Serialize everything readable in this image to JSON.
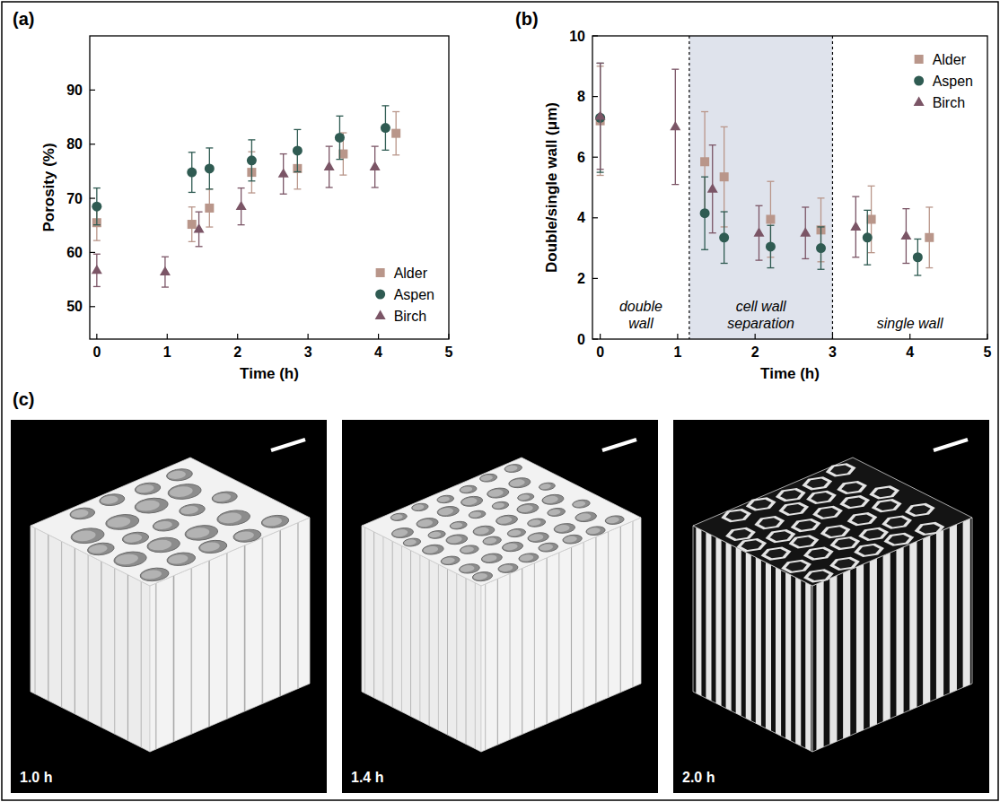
{
  "chart_data": [
    {
      "type": "scatter",
      "title": "(a)",
      "x_label": "Time (h)",
      "y_label": "Porosity (%)",
      "xlim": [
        -0.1,
        5
      ],
      "xticks": [
        0,
        1,
        2,
        3,
        4,
        5
      ],
      "ylim": [
        44,
        100
      ],
      "yticks": [
        50,
        60,
        70,
        80,
        90
      ],
      "legend": "lower right",
      "series": [
        {
          "name": "Alder",
          "color": "#b9968a",
          "marker": "square",
          "x": [
            0,
            1.35,
            1.6,
            2.2,
            2.85,
            3.5,
            4.25
          ],
          "values": [
            65.5,
            65.2,
            68.2,
            74.8,
            75.5,
            78.2,
            82
          ],
          "errors": [
            3.3,
            3.2,
            3.5,
            3.8,
            3.8,
            3.9,
            4
          ]
        },
        {
          "name": "Aspen",
          "color": "#2f5b52",
          "marker": "circle",
          "x": [
            0,
            1.35,
            1.6,
            2.2,
            2.85,
            3.45,
            4.1
          ],
          "values": [
            68.5,
            74.8,
            75.5,
            77,
            78.8,
            81.2,
            83
          ],
          "errors": [
            3.4,
            3.7,
            3.8,
            3.8,
            3.9,
            4,
            4.1
          ]
        },
        {
          "name": "Birch",
          "color": "#7b5566",
          "marker": "triangle",
          "x": [
            0,
            0.97,
            1.45,
            2.05,
            2.65,
            3.3,
            3.95
          ],
          "values": [
            56.7,
            56.4,
            64.3,
            68.5,
            74.5,
            75.8,
            75.8
          ],
          "errors": [
            3,
            2.8,
            3.2,
            3.4,
            3.7,
            3.8,
            3.8
          ]
        }
      ]
    },
    {
      "type": "scatter",
      "title": "(b)",
      "x_label": "Time (h)",
      "y_label": "Double/single wall (μm)",
      "xlim": [
        -0.1,
        5
      ],
      "xticks": [
        0,
        1,
        2,
        3,
        4,
        5
      ],
      "ylim": [
        0,
        10
      ],
      "yticks": [
        0,
        2,
        4,
        6,
        8,
        10
      ],
      "legend": "upper right",
      "shaded_region": [
        1.15,
        3.0
      ],
      "annotations": [
        "double wall",
        "cell wall separation",
        "single wall"
      ],
      "series": [
        {
          "name": "Alder",
          "color": "#b9968a",
          "marker": "square",
          "x": [
            0,
            1.35,
            1.6,
            2.2,
            2.85,
            3.5,
            4.25
          ],
          "values": [
            7.2,
            5.85,
            5.35,
            3.95,
            3.6,
            3.95,
            3.35
          ],
          "errors": [
            1.8,
            1.65,
            1.65,
            1.25,
            1.05,
            1.1,
            1.0
          ]
        },
        {
          "name": "Aspen",
          "color": "#2f5b52",
          "marker": "circle",
          "x": [
            0,
            1.35,
            1.6,
            2.2,
            2.85,
            3.45,
            4.1
          ],
          "values": [
            7.3,
            4.15,
            3.35,
            3.05,
            3.0,
            3.35,
            2.7
          ],
          "errors": [
            1.8,
            1.2,
            0.85,
            0.7,
            0.7,
            0.9,
            0.6
          ]
        },
        {
          "name": "Birch",
          "color": "#7b5566",
          "marker": "triangle",
          "x": [
            0,
            0.97,
            1.45,
            2.05,
            2.65,
            3.3,
            3.95
          ],
          "values": [
            7.35,
            7.0,
            4.95,
            3.5,
            3.5,
            3.7,
            3.4
          ],
          "errors": [
            1.75,
            1.9,
            1.45,
            0.9,
            0.85,
            1.0,
            0.9
          ]
        }
      ]
    }
  ],
  "images": {
    "title": "(c)",
    "panels": [
      {
        "label": "1.0 h"
      },
      {
        "label": "1.4 h"
      },
      {
        "label": "2.0 h"
      }
    ]
  }
}
